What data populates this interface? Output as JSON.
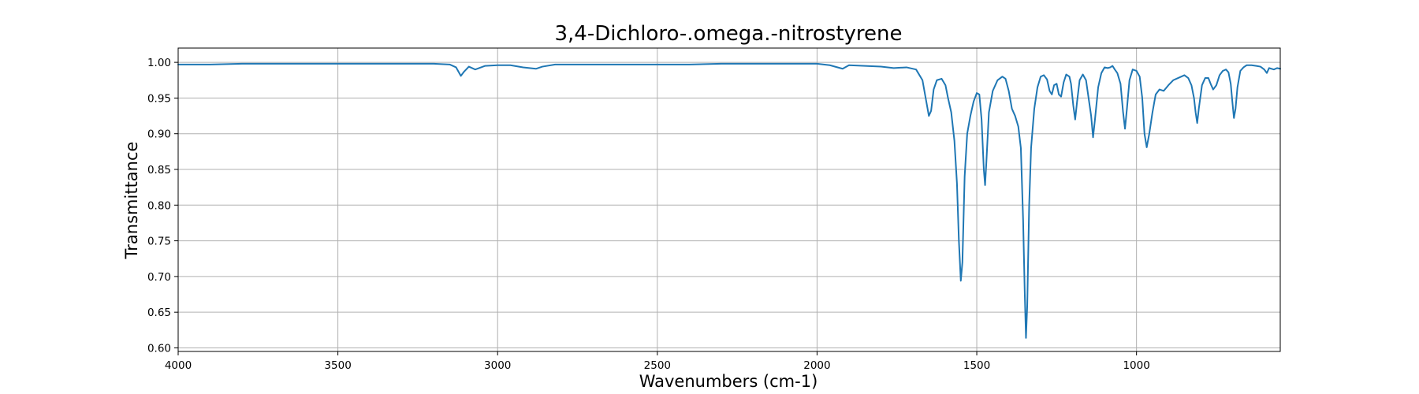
{
  "chart_data": {
    "type": "line",
    "title": "3,4-Dichloro-.omega.-nitrostyrene",
    "xlabel": "Wavenumbers (cm-1)",
    "ylabel": "Transmittance",
    "xlim": [
      4000,
      550
    ],
    "ylim": [
      0.595,
      1.02
    ],
    "x_reversed": true,
    "grid": true,
    "x_ticks": [
      4000,
      3500,
      3000,
      2500,
      2000,
      1500,
      1000
    ],
    "x_tick_labels": [
      "4000",
      "3500",
      "3000",
      "2500",
      "2000",
      "1500",
      "1000"
    ],
    "y_ticks": [
      0.6,
      0.65,
      0.7,
      0.75,
      0.8,
      0.85,
      0.9,
      0.95,
      1.0
    ],
    "y_tick_labels": [
      "0.60",
      "0.65",
      "0.70",
      "0.75",
      "0.80",
      "0.85",
      "0.90",
      "0.95",
      "1.00"
    ],
    "series": [
      {
        "color": "#1f77b4",
        "points": [
          [
            4000,
            0.997
          ],
          [
            3900,
            0.997
          ],
          [
            3800,
            0.998
          ],
          [
            3700,
            0.998
          ],
          [
            3600,
            0.998
          ],
          [
            3500,
            0.998
          ],
          [
            3400,
            0.998
          ],
          [
            3300,
            0.998
          ],
          [
            3200,
            0.998
          ],
          [
            3150,
            0.997
          ],
          [
            3130,
            0.993
          ],
          [
            3115,
            0.981
          ],
          [
            3105,
            0.987
          ],
          [
            3090,
            0.994
          ],
          [
            3070,
            0.99
          ],
          [
            3040,
            0.995
          ],
          [
            3000,
            0.996
          ],
          [
            2960,
            0.996
          ],
          [
            2920,
            0.993
          ],
          [
            2880,
            0.991
          ],
          [
            2860,
            0.994
          ],
          [
            2820,
            0.997
          ],
          [
            2700,
            0.997
          ],
          [
            2600,
            0.997
          ],
          [
            2500,
            0.997
          ],
          [
            2400,
            0.997
          ],
          [
            2300,
            0.998
          ],
          [
            2200,
            0.998
          ],
          [
            2100,
            0.998
          ],
          [
            2000,
            0.998
          ],
          [
            1960,
            0.996
          ],
          [
            1920,
            0.991
          ],
          [
            1900,
            0.996
          ],
          [
            1850,
            0.995
          ],
          [
            1800,
            0.994
          ],
          [
            1760,
            0.992
          ],
          [
            1720,
            0.993
          ],
          [
            1690,
            0.99
          ],
          [
            1670,
            0.975
          ],
          [
            1660,
            0.95
          ],
          [
            1650,
            0.925
          ],
          [
            1643,
            0.932
          ],
          [
            1635,
            0.962
          ],
          [
            1625,
            0.975
          ],
          [
            1610,
            0.977
          ],
          [
            1598,
            0.968
          ],
          [
            1590,
            0.95
          ],
          [
            1580,
            0.93
          ],
          [
            1570,
            0.89
          ],
          [
            1562,
            0.83
          ],
          [
            1556,
            0.75
          ],
          [
            1550,
            0.694
          ],
          [
            1545,
            0.72
          ],
          [
            1538,
            0.84
          ],
          [
            1530,
            0.9
          ],
          [
            1520,
            0.925
          ],
          [
            1510,
            0.945
          ],
          [
            1500,
            0.957
          ],
          [
            1492,
            0.955
          ],
          [
            1485,
            0.92
          ],
          [
            1478,
            0.85
          ],
          [
            1474,
            0.828
          ],
          [
            1470,
            0.86
          ],
          [
            1462,
            0.93
          ],
          [
            1450,
            0.96
          ],
          [
            1435,
            0.975
          ],
          [
            1420,
            0.98
          ],
          [
            1410,
            0.977
          ],
          [
            1400,
            0.96
          ],
          [
            1390,
            0.935
          ],
          [
            1380,
            0.925
          ],
          [
            1370,
            0.91
          ],
          [
            1362,
            0.88
          ],
          [
            1355,
            0.78
          ],
          [
            1350,
            0.68
          ],
          [
            1346,
            0.614
          ],
          [
            1342,
            0.66
          ],
          [
            1336,
            0.8
          ],
          [
            1330,
            0.88
          ],
          [
            1320,
            0.935
          ],
          [
            1310,
            0.965
          ],
          [
            1300,
            0.98
          ],
          [
            1290,
            0.982
          ],
          [
            1280,
            0.976
          ],
          [
            1272,
            0.96
          ],
          [
            1265,
            0.955
          ],
          [
            1258,
            0.968
          ],
          [
            1250,
            0.97
          ],
          [
            1243,
            0.955
          ],
          [
            1236,
            0.952
          ],
          [
            1228,
            0.972
          ],
          [
            1220,
            0.983
          ],
          [
            1210,
            0.98
          ],
          [
            1205,
            0.97
          ],
          [
            1198,
            0.94
          ],
          [
            1192,
            0.92
          ],
          [
            1186,
            0.945
          ],
          [
            1178,
            0.975
          ],
          [
            1168,
            0.983
          ],
          [
            1158,
            0.975
          ],
          [
            1150,
            0.95
          ],
          [
            1142,
            0.925
          ],
          [
            1136,
            0.895
          ],
          [
            1130,
            0.92
          ],
          [
            1120,
            0.965
          ],
          [
            1110,
            0.985
          ],
          [
            1100,
            0.993
          ],
          [
            1090,
            0.992
          ],
          [
            1082,
            0.993
          ],
          [
            1075,
            0.995
          ],
          [
            1068,
            0.99
          ],
          [
            1060,
            0.985
          ],
          [
            1050,
            0.97
          ],
          [
            1042,
            0.93
          ],
          [
            1036,
            0.907
          ],
          [
            1030,
            0.935
          ],
          [
            1022,
            0.975
          ],
          [
            1012,
            0.99
          ],
          [
            1000,
            0.988
          ],
          [
            990,
            0.98
          ],
          [
            982,
            0.95
          ],
          [
            975,
            0.9
          ],
          [
            968,
            0.881
          ],
          [
            960,
            0.9
          ],
          [
            950,
            0.93
          ],
          [
            940,
            0.955
          ],
          [
            928,
            0.962
          ],
          [
            915,
            0.96
          ],
          [
            900,
            0.968
          ],
          [
            885,
            0.975
          ],
          [
            870,
            0.978
          ],
          [
            850,
            0.982
          ],
          [
            838,
            0.978
          ],
          [
            828,
            0.968
          ],
          [
            820,
            0.95
          ],
          [
            815,
            0.93
          ],
          [
            810,
            0.915
          ],
          [
            805,
            0.935
          ],
          [
            795,
            0.968
          ],
          [
            785,
            0.978
          ],
          [
            775,
            0.978
          ],
          [
            768,
            0.97
          ],
          [
            760,
            0.962
          ],
          [
            750,
            0.968
          ],
          [
            740,
            0.982
          ],
          [
            730,
            0.988
          ],
          [
            720,
            0.99
          ],
          [
            712,
            0.986
          ],
          [
            705,
            0.97
          ],
          [
            700,
            0.945
          ],
          [
            695,
            0.922
          ],
          [
            690,
            0.935
          ],
          [
            684,
            0.965
          ],
          [
            675,
            0.988
          ],
          [
            665,
            0.993
          ],
          [
            655,
            0.996
          ],
          [
            640,
            0.996
          ],
          [
            625,
            0.995
          ],
          [
            612,
            0.994
          ],
          [
            600,
            0.99
          ],
          [
            592,
            0.985
          ],
          [
            585,
            0.992
          ],
          [
            570,
            0.99
          ],
          [
            560,
            0.992
          ],
          [
            550,
            0.991
          ]
        ]
      }
    ]
  }
}
